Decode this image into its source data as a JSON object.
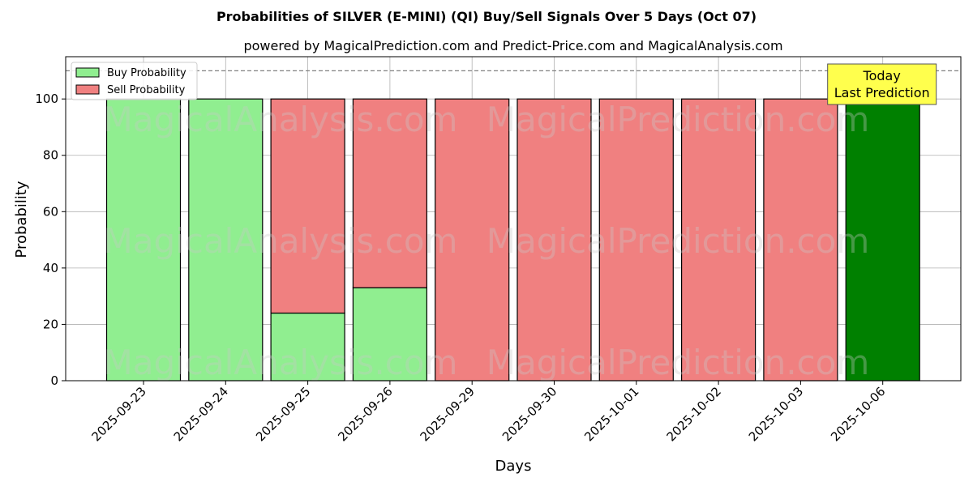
{
  "chart_data": {
    "type": "bar",
    "title": "Probabilities of SILVER (E-MINI) (QI) Buy/Sell Signals Over 5 Days (Oct 07)",
    "subtitle": "powered by MagicalPrediction.com and Predict-Price.com and MagicalAnalysis.com",
    "xlabel": "Days",
    "ylabel": "Probability",
    "ylim": [
      0,
      115
    ],
    "yticks": [
      0,
      20,
      40,
      60,
      80,
      100
    ],
    "categories": [
      "2025-09-23",
      "2025-09-24",
      "2025-09-25",
      "2025-09-26",
      "2025-09-29",
      "2025-09-30",
      "2025-10-01",
      "2025-10-02",
      "2025-10-03",
      "2025-10-06"
    ],
    "series": [
      {
        "name": "Buy Probability",
        "color": "#90ee90",
        "values": [
          100,
          100,
          24,
          33,
          0,
          0,
          0,
          0,
          0,
          100
        ]
      },
      {
        "name": "Sell Probability",
        "color": "#f08080",
        "values": [
          0,
          0,
          76,
          67,
          100,
          100,
          100,
          100,
          100,
          0
        ]
      }
    ],
    "stacked": true,
    "highlight": {
      "index": 9,
      "color": "#008000"
    },
    "reference_line": {
      "y": 110,
      "style": "dashed",
      "color": "#808080"
    },
    "annotation": {
      "lines": [
        "Today",
        "Last Prediction"
      ],
      "target_index": 9,
      "background": "#ffff4d"
    },
    "watermarks": [
      "MagicalAnalysis.com",
      "MagicalPrediction.com"
    ],
    "grid": true,
    "legend_position": "top-left"
  }
}
